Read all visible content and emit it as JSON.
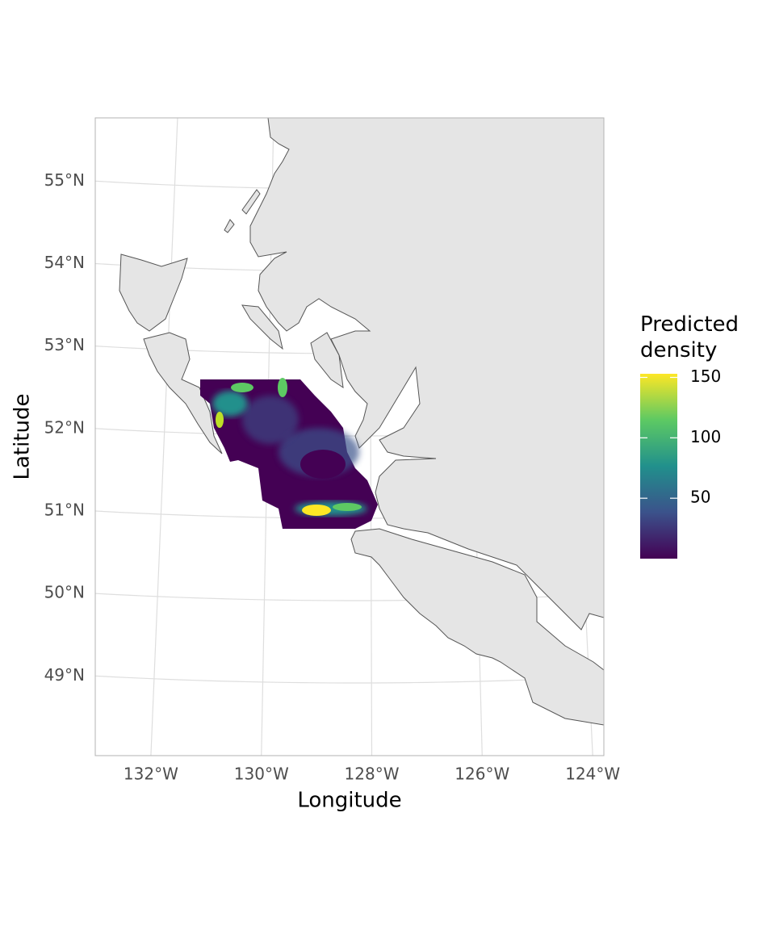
{
  "chart_data": {
    "type": "map",
    "x_label": "Longitude",
    "y_label": "Latitude",
    "xticks": [
      {
        "value": -132,
        "label": "132°W"
      },
      {
        "value": -130,
        "label": "130°W"
      },
      {
        "value": -128,
        "label": "128°W"
      },
      {
        "value": -126,
        "label": "126°W"
      },
      {
        "value": -124,
        "label": "124°W"
      }
    ],
    "yticks": [
      {
        "value": 49,
        "label": "49°N"
      },
      {
        "value": 50,
        "label": "50°N"
      },
      {
        "value": 51,
        "label": "51°N"
      },
      {
        "value": 52,
        "label": "52°N"
      },
      {
        "value": 53,
        "label": "53°N"
      },
      {
        "value": 54,
        "label": "54°N"
      },
      {
        "value": 55,
        "label": "55°N"
      }
    ],
    "grid": true,
    "legend": {
      "title": "Predicted\ndensity",
      "lim": [
        0,
        153
      ],
      "ticks": [
        50,
        100,
        150
      ],
      "colors": [
        "#440154",
        "#3b528b",
        "#21908c",
        "#5dc963",
        "#fde725"
      ]
    }
  }
}
